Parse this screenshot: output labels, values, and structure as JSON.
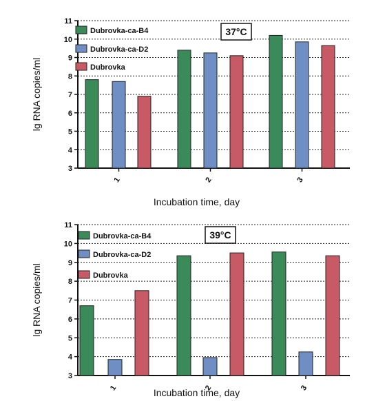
{
  "chart_data": [
    {
      "type": "bar",
      "title": "",
      "annotation": "37°C",
      "xlabel": "Incubation time, day",
      "ylabel": "lg RNA copies/ml",
      "categories": [
        "1",
        "2",
        "3"
      ],
      "ylim": [
        3,
        11
      ],
      "yticks": [
        "3",
        "4",
        "5",
        "6",
        "7",
        "8",
        "9",
        "10",
        "11"
      ],
      "grid": "horizontal dotted",
      "legend_position": "top-left",
      "series": [
        {
          "name": "Dubrovka-ca-B4",
          "color": "#3a8a5a",
          "values": [
            7.8,
            9.4,
            10.2
          ]
        },
        {
          "name": "Dubrovka-ca-D2",
          "color": "#6f8fc4",
          "values": [
            7.7,
            9.25,
            9.85
          ]
        },
        {
          "name": "Dubrovka",
          "color": "#c85a66",
          "values": [
            6.9,
            9.1,
            9.65
          ]
        }
      ]
    },
    {
      "type": "bar",
      "title": "",
      "annotation": "39°C",
      "xlabel": "Incubation time, day",
      "ylabel": "lg RNA copies/ml",
      "categories": [
        "1",
        "2",
        "3"
      ],
      "ylim": [
        3,
        11
      ],
      "yticks": [
        "3",
        "4",
        "5",
        "6",
        "7",
        "8",
        "9",
        "10",
        "11"
      ],
      "grid": "horizontal dotted",
      "legend_position": "top-left",
      "series": [
        {
          "name": "Dubrovka-ca-B4",
          "color": "#3a8a5a",
          "values": [
            6.7,
            9.35,
            9.55
          ]
        },
        {
          "name": "Dubrovka-ca-D2",
          "color": "#6f8fc4",
          "values": [
            3.85,
            3.95,
            4.25
          ]
        },
        {
          "name": "Dubrovka",
          "color": "#c85a66",
          "values": [
            7.5,
            9.5,
            9.35
          ]
        }
      ]
    }
  ]
}
